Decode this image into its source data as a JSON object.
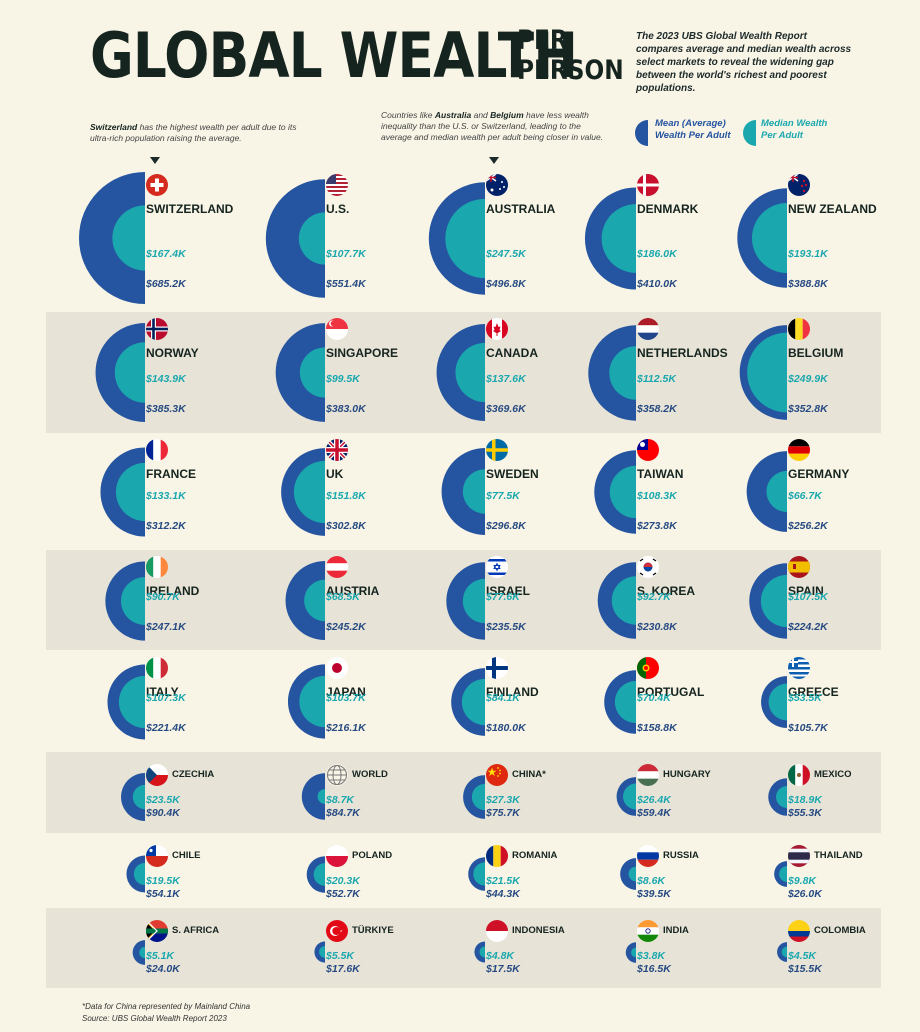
{
  "header": {
    "title": "GLOBAL WEALTH",
    "title_sub_1": "PER",
    "title_sub_2": "PERSON",
    "intro": "The 2023 UBS Global Wealth Report compares average and median wealth across select markets to reveal the widening gap between the world's richest and poorest populations."
  },
  "notes": {
    "switzerland_bold": "Switzerland",
    "switzerland_text": " has the highest wealth per adult due to its ultra-rich population raising the average.",
    "aus_pre": "Countries like ",
    "aus_bold1": "Australia",
    "aus_mid": " and ",
    "aus_bold2": "Belgium",
    "aus_post": " have less wealth inequality than the U.S. or Switzerland, leading to the average and median wealth per adult being closer in value."
  },
  "legend": {
    "mean": "Mean (Average) Wealth Per Adult",
    "median": "Median Wealth Per Adult"
  },
  "colors": {
    "mean": "#2554a0",
    "median": "#1aa8ae",
    "band": "#e7e3d7",
    "background": "#f8f4e6"
  },
  "chart_data": {
    "type": "semicircle-pair",
    "unit": "USD",
    "series": [
      {
        "name": "Mean (Average) Wealth Per Adult",
        "key": "mean"
      },
      {
        "name": "Median Wealth Per Adult",
        "key": "median"
      }
    ],
    "rows": [
      {
        "banded": false,
        "countries": [
          {
            "name": "SWITZERLAND",
            "flag": "switzerland-flag",
            "median": 167.4,
            "mean": 685.2,
            "median_label": "$167.4K",
            "mean_label": "$685.2K"
          },
          {
            "name": "U.S.",
            "flag": "us-flag",
            "median": 107.7,
            "mean": 551.4,
            "median_label": "$107.7K",
            "mean_label": "$551.4K"
          },
          {
            "name": "AUSTRALIA",
            "flag": "australia-flag",
            "median": 247.5,
            "mean": 496.8,
            "median_label": "$247.5K",
            "mean_label": "$496.8K"
          },
          {
            "name": "DENMARK",
            "flag": "denmark-flag",
            "median": 186.0,
            "mean": 410.0,
            "median_label": "$186.0K",
            "mean_label": "$410.0K"
          },
          {
            "name": "NEW ZEALAND",
            "flag": "new-zealand-flag",
            "median": 193.1,
            "mean": 388.8,
            "median_label": "$193.1K",
            "mean_label": "$388.8K"
          }
        ]
      },
      {
        "banded": true,
        "countries": [
          {
            "name": "NORWAY",
            "flag": "norway-flag",
            "median": 143.9,
            "mean": 385.3,
            "median_label": "$143.9K",
            "mean_label": "$385.3K"
          },
          {
            "name": "SINGAPORE",
            "flag": "singapore-flag",
            "median": 99.5,
            "mean": 383.0,
            "median_label": "$99.5K",
            "mean_label": "$383.0K"
          },
          {
            "name": "CANADA",
            "flag": "canada-flag",
            "median": 137.6,
            "mean": 369.6,
            "median_label": "$137.6K",
            "mean_label": "$369.6K"
          },
          {
            "name": "NETHERLANDS",
            "flag": "netherlands-flag",
            "median": 112.5,
            "mean": 358.2,
            "median_label": "$112.5K",
            "mean_label": "$358.2K"
          },
          {
            "name": "BELGIUM",
            "flag": "belgium-flag",
            "median": 249.9,
            "mean": 352.8,
            "median_label": "$249.9K",
            "mean_label": "$352.8K"
          }
        ]
      },
      {
        "banded": false,
        "countries": [
          {
            "name": "FRANCE",
            "flag": "france-flag",
            "median": 133.1,
            "mean": 312.2,
            "median_label": "$133.1K",
            "mean_label": "$312.2K"
          },
          {
            "name": "UK",
            "flag": "uk-flag",
            "median": 151.8,
            "mean": 302.8,
            "median_label": "$151.8K",
            "mean_label": "$302.8K"
          },
          {
            "name": "SWEDEN",
            "flag": "sweden-flag",
            "median": 77.5,
            "mean": 296.8,
            "median_label": "$77.5K",
            "mean_label": "$296.8K"
          },
          {
            "name": "TAIWAN",
            "flag": "taiwan-flag",
            "median": 108.3,
            "mean": 273.8,
            "median_label": "$108.3K",
            "mean_label": "$273.8K"
          },
          {
            "name": "GERMANY",
            "flag": "germany-flag",
            "median": 66.7,
            "mean": 256.2,
            "median_label": "$66.7K",
            "mean_label": "$256.2K"
          }
        ]
      },
      {
        "banded": true,
        "countries": [
          {
            "name": "IRELAND",
            "flag": "ireland-flag",
            "median": 90.7,
            "mean": 247.1,
            "median_label": "$90.7K",
            "mean_label": "$247.1K"
          },
          {
            "name": "AUSTRIA",
            "flag": "austria-flag",
            "median": 68.5,
            "mean": 245.2,
            "median_label": "$68.5K",
            "mean_label": "$245.2K"
          },
          {
            "name": "ISRAEL",
            "flag": "israel-flag",
            "median": 77.6,
            "mean": 235.5,
            "median_label": "$77.6K",
            "mean_label": "$235.5K"
          },
          {
            "name": "S. KOREA",
            "flag": "south-korea-flag",
            "median": 92.7,
            "mean": 230.8,
            "median_label": "$92.7K",
            "mean_label": "$230.8K"
          },
          {
            "name": "SPAIN",
            "flag": "spain-flag",
            "median": 107.5,
            "mean": 224.2,
            "median_label": "$107.5K",
            "mean_label": "$224.2K"
          }
        ]
      },
      {
        "banded": false,
        "countries": [
          {
            "name": "ITALY",
            "flag": "italy-flag",
            "median": 107.3,
            "mean": 221.4,
            "median_label": "$107.3K",
            "mean_label": "$221.4K"
          },
          {
            "name": "JAPAN",
            "flag": "japan-flag",
            "median": 103.7,
            "mean": 216.1,
            "median_label": "$103.7K",
            "mean_label": "$216.1K"
          },
          {
            "name": "FINLAND",
            "flag": "finland-flag",
            "median": 84.1,
            "mean": 180.0,
            "median_label": "$84.1K",
            "mean_label": "$180.0K"
          },
          {
            "name": "PORTUGAL",
            "flag": "portugal-flag",
            "median": 70.4,
            "mean": 158.8,
            "median_label": "$70.4K",
            "mean_label": "$158.8K"
          },
          {
            "name": "GREECE",
            "flag": "greece-flag",
            "median": 53.5,
            "mean": 105.7,
            "median_label": "$53.5K",
            "mean_label": "$105.7K"
          }
        ]
      },
      {
        "banded": true,
        "small": true,
        "countries": [
          {
            "name": "CZECHIA",
            "flag": "czechia-flag",
            "median": 23.5,
            "mean": 90.4,
            "median_label": "$23.5K",
            "mean_label": "$90.4K"
          },
          {
            "name": "WORLD",
            "flag": "globe-icon",
            "median": 8.7,
            "mean": 84.7,
            "median_label": "$8.7K",
            "mean_label": "$84.7K"
          },
          {
            "name": "CHINA*",
            "flag": "china-flag",
            "median": 27.3,
            "mean": 75.7,
            "median_label": "$27.3K",
            "mean_label": "$75.7K"
          },
          {
            "name": "HUNGARY",
            "flag": "hungary-flag",
            "median": 26.4,
            "mean": 59.4,
            "median_label": "$26.4K",
            "mean_label": "$59.4K"
          },
          {
            "name": "MEXICO",
            "flag": "mexico-flag",
            "median": 18.9,
            "mean": 55.3,
            "median_label": "$18.9K",
            "mean_label": "$55.3K"
          }
        ]
      },
      {
        "banded": false,
        "small": true,
        "countries": [
          {
            "name": "CHILE",
            "flag": "chile-flag",
            "median": 19.5,
            "mean": 54.1,
            "median_label": "$19.5K",
            "mean_label": "$54.1K"
          },
          {
            "name": "POLAND",
            "flag": "poland-flag",
            "median": 20.3,
            "mean": 52.7,
            "median_label": "$20.3K",
            "mean_label": "$52.7K"
          },
          {
            "name": "ROMANIA",
            "flag": "romania-flag",
            "median": 21.5,
            "mean": 44.3,
            "median_label": "$21.5K",
            "mean_label": "$44.3K"
          },
          {
            "name": "RUSSIA",
            "flag": "russia-flag",
            "median": 8.6,
            "mean": 39.5,
            "median_label": "$8.6K",
            "mean_label": "$39.5K"
          },
          {
            "name": "THAILAND",
            "flag": "thailand-flag",
            "median": 9.8,
            "mean": 26.0,
            "median_label": "$9.8K",
            "mean_label": "$26.0K"
          }
        ]
      },
      {
        "banded": true,
        "small": true,
        "countries": [
          {
            "name": "S. AFRICA",
            "flag": "south-africa-flag",
            "median": 5.1,
            "mean": 24.0,
            "median_label": "$5.1K",
            "mean_label": "$24.0K"
          },
          {
            "name": "TÜRKIYE",
            "flag": "turkiye-flag",
            "median": 5.5,
            "mean": 17.6,
            "median_label": "$5.5K",
            "mean_label": "$17.6K"
          },
          {
            "name": "INDONESIA",
            "flag": "indonesia-flag",
            "median": 4.8,
            "mean": 17.5,
            "median_label": "$4.8K",
            "mean_label": "$17.5K"
          },
          {
            "name": "INDIA",
            "flag": "india-flag",
            "median": 3.8,
            "mean": 16.5,
            "median_label": "$3.8K",
            "mean_label": "$16.5K"
          },
          {
            "name": "COLOMBIA",
            "flag": "colombia-flag",
            "median": 4.5,
            "mean": 15.5,
            "median_label": "$4.5K",
            "mean_label": "$15.5K"
          }
        ]
      }
    ]
  },
  "footer": {
    "note": "*Data for China represented by Mainland China",
    "source": "Source: UBS Global Wealth Report 2023"
  }
}
